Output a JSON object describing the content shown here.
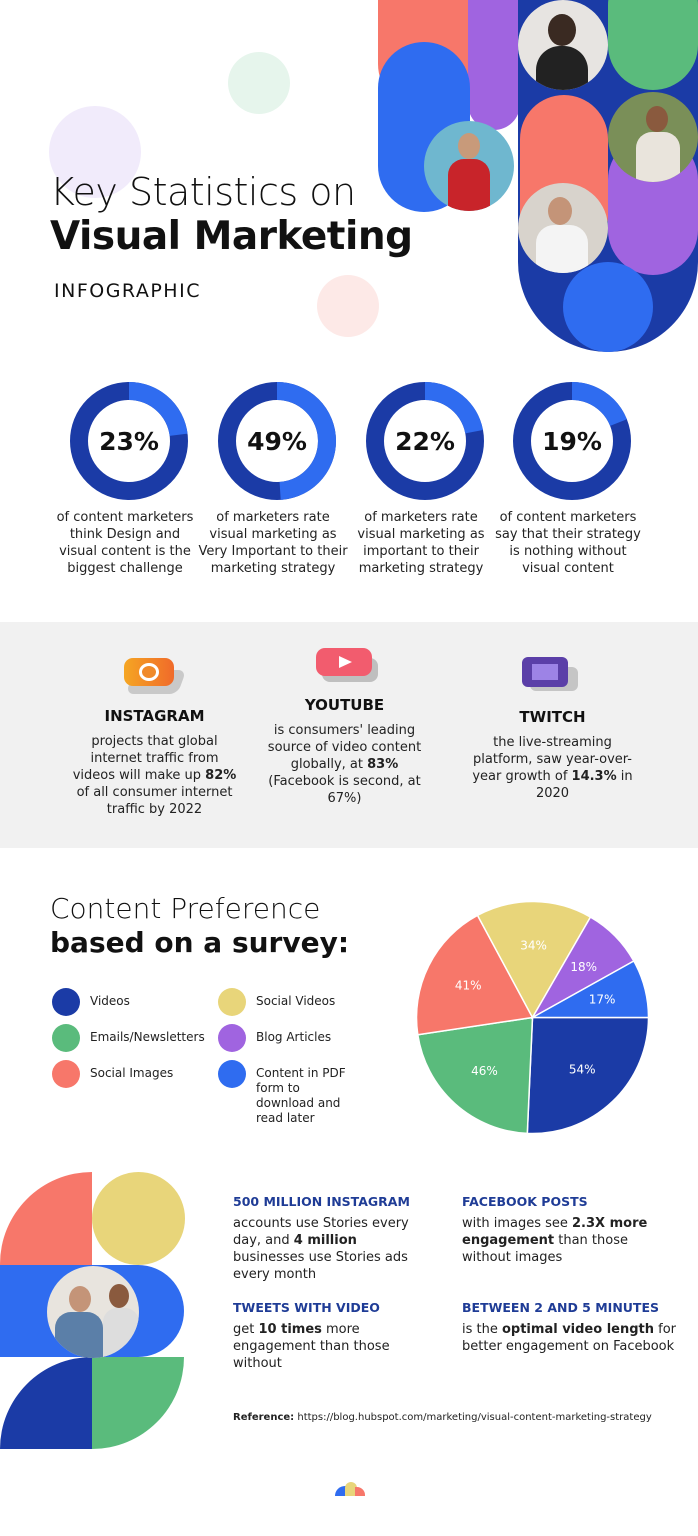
{
  "header": {
    "title_line1": "Key Statistics on",
    "title_line2": "Visual Marketing",
    "subtitle": "INFOGRAPHIC"
  },
  "colors": {
    "dark_blue": "#1b3ba6",
    "blue": "#2f6cf0",
    "green": "#5abb7c",
    "salmon": "#f7776a",
    "yellow": "#e8d57a",
    "purple": "#a064e0",
    "gray_bg": "#f1f1f1",
    "heading_blue": "#1f3c96"
  },
  "stats": [
    {
      "value": "23%",
      "percent": 23,
      "caption": "of content marketers think Design and visual content is the biggest challenge"
    },
    {
      "value": "49%",
      "percent": 49,
      "caption": "of marketers rate visual marketing as Very Important to their marketing strategy"
    },
    {
      "value": "22%",
      "percent": 22,
      "caption": "of marketers rate visual marketing as important to their marketing strategy"
    },
    {
      "value": "19%",
      "percent": 19,
      "caption": "of content marketers say that their strategy is nothing without visual content"
    }
  ],
  "platforms": [
    {
      "name": "INSTAGRAM",
      "icon": "instagram-icon",
      "pre": "projects that global internet traffic from videos will make up ",
      "bold": "82%",
      "post": " of all consumer internet traffic by 2022"
    },
    {
      "name": "YOUTUBE",
      "icon": "youtube-icon",
      "pre": "is consumers' leading source of video content globally, at ",
      "bold": "83%",
      "post": " (Facebook is second, at 67%)"
    },
    {
      "name": "TWITCH",
      "icon": "twitch-icon",
      "pre": "the live-streaming platform, saw year-over-year growth of ",
      "bold": "14.3%",
      "post": "  in 2020"
    }
  ],
  "preference": {
    "title_line1": "Content Preference",
    "title_line2": "based on a survey:"
  },
  "chart_data": {
    "type": "pie",
    "categories": [
      "Videos",
      "Emails/Newsletters",
      "Social Images",
      "Social Videos",
      "Blog Articles",
      "Content in PDF form to download and read later"
    ],
    "values": [
      54,
      46,
      41,
      34,
      18,
      17
    ],
    "labels": [
      "54%",
      "46%",
      "41%",
      "34%",
      "18%",
      "17%"
    ],
    "colors": [
      "#1b3ba6",
      "#5abb7c",
      "#f7776a",
      "#e8d57a",
      "#a064e0",
      "#2f6cf0"
    ],
    "legend_placement": "left"
  },
  "facts": [
    {
      "heading": "500 MILLION INSTAGRAM",
      "pre": "accounts use Stories every day, and ",
      "bold": "4 million",
      "post": " businesses use Stories ads every month"
    },
    {
      "heading": "FACEBOOK POSTS",
      "pre": "with images see ",
      "bold": "2.3X more engagement",
      "post": " than those without images"
    },
    {
      "heading": "TWEETS WITH VIDEO",
      "pre": "get ",
      "bold": "10 times",
      "post": " more engagement than those without"
    },
    {
      "heading": "BETWEEN 2 AND 5 MINUTES",
      "pre": "is the ",
      "bold": "optimal video length",
      "post": " for better engagement on Facebook"
    }
  ],
  "reference": {
    "label": "Reference:",
    "url": "https://blog.hubspot.com/marketing/visual-content-marketing-strategy"
  }
}
